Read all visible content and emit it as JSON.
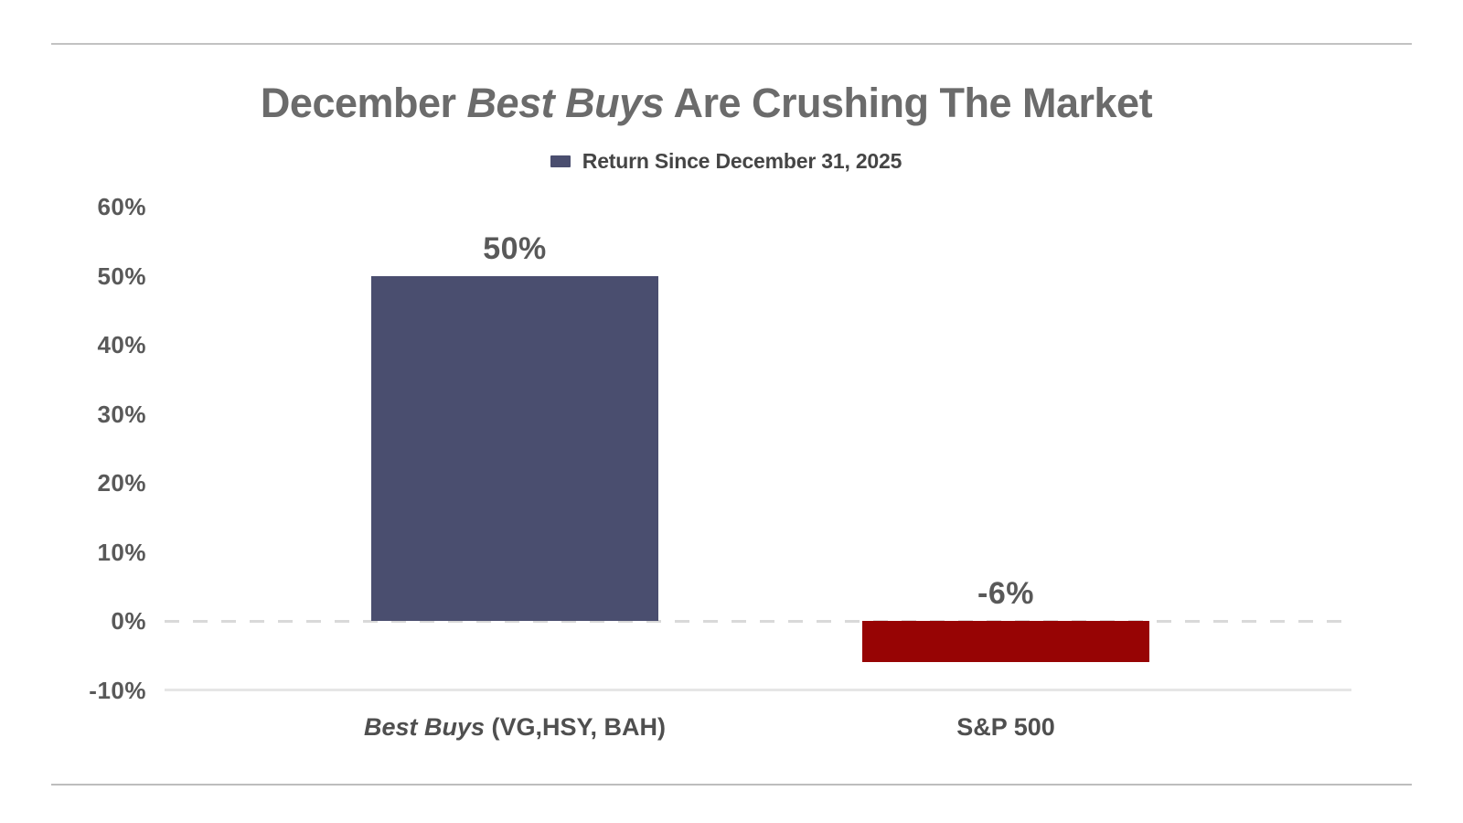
{
  "title": {
    "prefix": "December ",
    "italic": "Best Buys",
    "suffix": " Are Crushing The Market",
    "color": "#6b6b6b"
  },
  "legend": {
    "label": "Return Since December 31, 2025",
    "marker_color": "#4a4e6f"
  },
  "chart_data": {
    "type": "bar",
    "title": "December Best Buys Are Crushing The Market",
    "legend": [
      "Return Since December 31, 2025"
    ],
    "legend_position": "top-center",
    "categories": [
      "Best Buys (VG,HSY, BAH)",
      "S&P 500"
    ],
    "categories_rich": [
      {
        "italic": "Best Buys",
        "plain": " (VG,HSY, BAH)"
      },
      {
        "italic": "",
        "plain": "S&P 500"
      }
    ],
    "values": [
      50,
      -6
    ],
    "data_labels": [
      "50%",
      "-6%"
    ],
    "bar_colors": [
      "#4a4e6f",
      "#970404"
    ],
    "xlabel": "",
    "ylabel": "",
    "ylim": [
      -10,
      60
    ],
    "yticks": [
      {
        "label": "60%",
        "value": 60
      },
      {
        "label": "50%",
        "value": 50
      },
      {
        "label": "40%",
        "value": 40
      },
      {
        "label": "30%",
        "value": 30
      },
      {
        "label": "20%",
        "value": 20
      },
      {
        "label": "10%",
        "value": 10
      },
      {
        "label": "0%",
        "value": 0
      },
      {
        "label": "-10%",
        "value": -10
      }
    ],
    "gridlines": [
      {
        "value": 0,
        "style": "dashed"
      },
      {
        "value": -10,
        "style": "solid"
      }
    ],
    "grid": "minimal"
  }
}
